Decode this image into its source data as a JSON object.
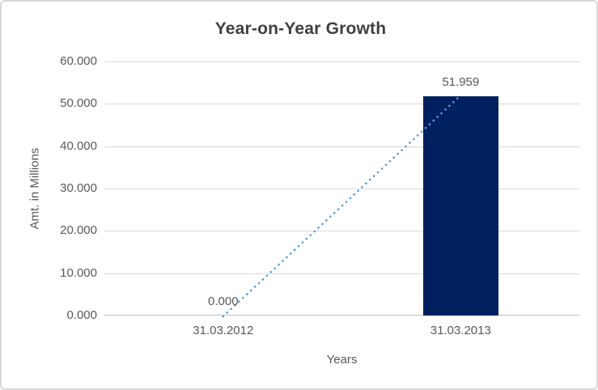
{
  "window": {
    "background_color": "#FFFFFF",
    "border_color": "#D9D9D9"
  },
  "chart_data": {
    "type": "bar",
    "title": "Year-on-Year Growth",
    "categories": [
      "31.03.2012",
      "31.03.2013"
    ],
    "values": [
      0,
      51.959
    ],
    "data_labels": [
      "0.000",
      "51.959"
    ],
    "xlabel": "Years",
    "ylabel": "Amt. in Millions",
    "ylim": [
      0,
      60
    ],
    "ytick_step": 10,
    "yticks": [
      "60.000",
      "50.000",
      "40.000",
      "30.000",
      "20.000",
      "10.000",
      "0.000"
    ],
    "grid": true,
    "legend_position": "none",
    "bar_color": "#002060",
    "trendline": {
      "type": "linear",
      "style": "dotted",
      "color": "#5B9BD5"
    },
    "title_color": "#404040",
    "text_color": "#595959",
    "gridline_color": "#D9D9D9",
    "axis_line_color": "#BFBFBF"
  }
}
